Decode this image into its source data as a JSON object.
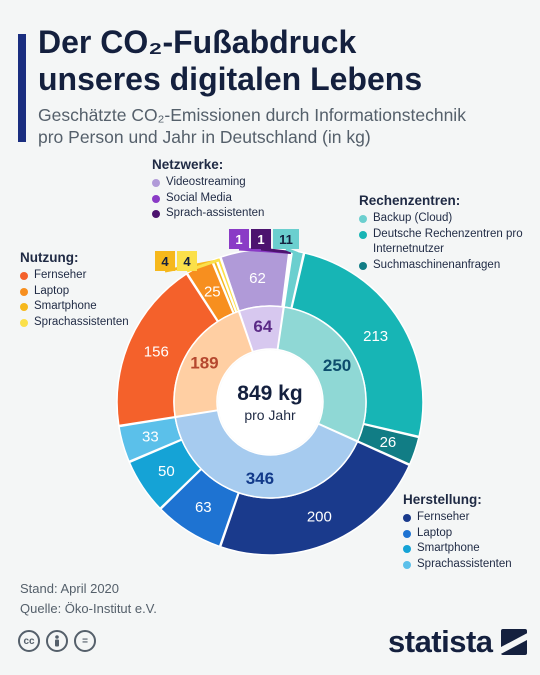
{
  "header": {
    "title_line1": "Der CO₂-Fußabdruck",
    "title_line2": "unseres digitalen Lebens",
    "subtitle_line1": "Geschätzte CO₂-Emissionen durch Informationstechnik",
    "subtitle_line2": "pro Person und Jahr in Deutschland (in kg)"
  },
  "chart_data": {
    "type": "sunburst",
    "total": {
      "value": "849 kg",
      "label": "pro Jahr"
    },
    "inner": [
      {
        "name": "Netzwerke",
        "value": 64,
        "color": "#d7c8ef",
        "label_color": "#5b2a86"
      },
      {
        "name": "Rechenzentren",
        "value": 250,
        "color": "#8fd8d5",
        "label_color": "#0d4d6d"
      },
      {
        "name": "Herstellung",
        "value": 346,
        "color": "#a6cbef",
        "label_color": "#123a8a"
      },
      {
        "name": "Nutzung",
        "value": 189,
        "color": "#ffcfa3",
        "label_color": "#b5472e"
      }
    ],
    "outer": [
      {
        "group": "Netzwerke",
        "name": "Videostreaming",
        "value": 62,
        "label": "62",
        "color": "#b09ad8"
      },
      {
        "group": "Netzwerke",
        "name": "Social Media",
        "value": 1,
        "label": "1",
        "color": "#8a3bc6"
      },
      {
        "group": "Netzwerke",
        "name": "Sprachassistenten",
        "value": 1,
        "label": "1",
        "color": "#4c136f"
      },
      {
        "group": "Rechenzentren",
        "name": "Backup (Cloud)",
        "value": 11,
        "label": "11",
        "color": "#6bcfcf"
      },
      {
        "group": "Rechenzentren",
        "name": "Deutsche Rechenzentren pro Internetnutzer",
        "value": 213,
        "label": "213",
        "color": "#17b5b5"
      },
      {
        "group": "Rechenzentren",
        "name": "Suchmaschinenanfragen",
        "value": 26,
        "label": "26",
        "color": "#117d85"
      },
      {
        "group": "Herstellung",
        "name": "Fernseher",
        "value": 200,
        "label": "200",
        "color": "#1a3a8c"
      },
      {
        "group": "Herstellung",
        "name": "Laptop",
        "value": 63,
        "label": "63",
        "color": "#1e73d2"
      },
      {
        "group": "Herstellung",
        "name": "Smartphone",
        "value": 50,
        "label": "50",
        "color": "#15a3d6"
      },
      {
        "group": "Herstellung",
        "name": "Sprachassistenten",
        "value": 33,
        "label": "33",
        "color": "#5bc0ea"
      },
      {
        "group": "Nutzung",
        "name": "Fernseher",
        "value": 156,
        "label": "156",
        "color": "#f4612b"
      },
      {
        "group": "Nutzung",
        "name": "Laptop",
        "value": 25,
        "label": "25",
        "color": "#f78f1f"
      },
      {
        "group": "Nutzung",
        "name": "Smartphone",
        "value": 4,
        "label": "4",
        "color": "#f6b81c"
      },
      {
        "group": "Nutzung",
        "name": "Sprachassistenten",
        "value": 4,
        "label": "4",
        "color": "#fbe04a"
      }
    ]
  },
  "legends": {
    "netzwerke": {
      "title": "Netzwerke:",
      "items": [
        {
          "label": "Videostreaming",
          "color": "#b09ad8"
        },
        {
          "label": "Social Media",
          "color": "#8a3bc6"
        },
        {
          "label": "Sprach-assistenten",
          "color": "#4c136f"
        }
      ]
    },
    "rechenzentren": {
      "title": "Rechenzentren:",
      "items": [
        {
          "label": "Backup (Cloud)",
          "color": "#6bcfcf"
        },
        {
          "label": "Deutsche Rechenzentren pro Internetnutzer",
          "color": "#17b5b5"
        },
        {
          "label": "Suchmaschinenanfragen",
          "color": "#117d85"
        }
      ]
    },
    "nutzung": {
      "title": "Nutzung:",
      "items": [
        {
          "label": "Fernseher",
          "color": "#f4612b"
        },
        {
          "label": "Laptop",
          "color": "#f78f1f"
        },
        {
          "label": "Smartphone",
          "color": "#f6b81c"
        },
        {
          "label": "Sprachassistenten",
          "color": "#fbe04a"
        }
      ]
    },
    "herstellung": {
      "title": "Herstellung:",
      "items": [
        {
          "label": "Fernseher",
          "color": "#1a3a8c"
        },
        {
          "label": "Laptop",
          "color": "#1e73d2"
        },
        {
          "label": "Smartphone",
          "color": "#15a3d6"
        },
        {
          "label": "Sprachassistenten",
          "color": "#5bc0ea"
        }
      ]
    }
  },
  "footer": {
    "stand": "Stand: April 2020",
    "quelle": "Quelle: Öko-Institut e.V."
  },
  "brand": {
    "name": "statista"
  },
  "license_icons": [
    "cc-icon",
    "by-person-icon",
    "nd-equals-icon"
  ]
}
